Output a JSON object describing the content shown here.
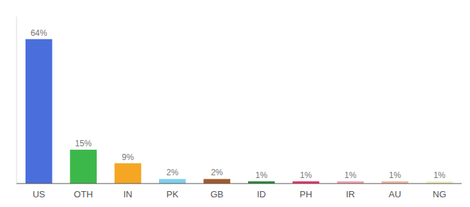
{
  "chart_data": {
    "type": "bar",
    "categories": [
      "US",
      "OTH",
      "IN",
      "PK",
      "GB",
      "ID",
      "PH",
      "IR",
      "AU",
      "NG"
    ],
    "values": [
      64,
      15,
      9,
      2,
      2,
      1,
      1,
      1,
      1,
      1
    ],
    "value_labels": [
      "64%",
      "15%",
      "9%",
      "2%",
      "2%",
      "1%",
      "1%",
      "1%",
      "1%",
      "1%"
    ],
    "colors": [
      "#4a6fdc",
      "#3cb84a",
      "#f5a623",
      "#7ecfee",
      "#a05a2c",
      "#2a8a3a",
      "#e8346a",
      "#f4a0b0",
      "#f0b8a0",
      "#f5f0c0"
    ],
    "ylim": [
      0,
      74
    ],
    "data_labels": true,
    "tick_labels": "x",
    "grid": false
  }
}
